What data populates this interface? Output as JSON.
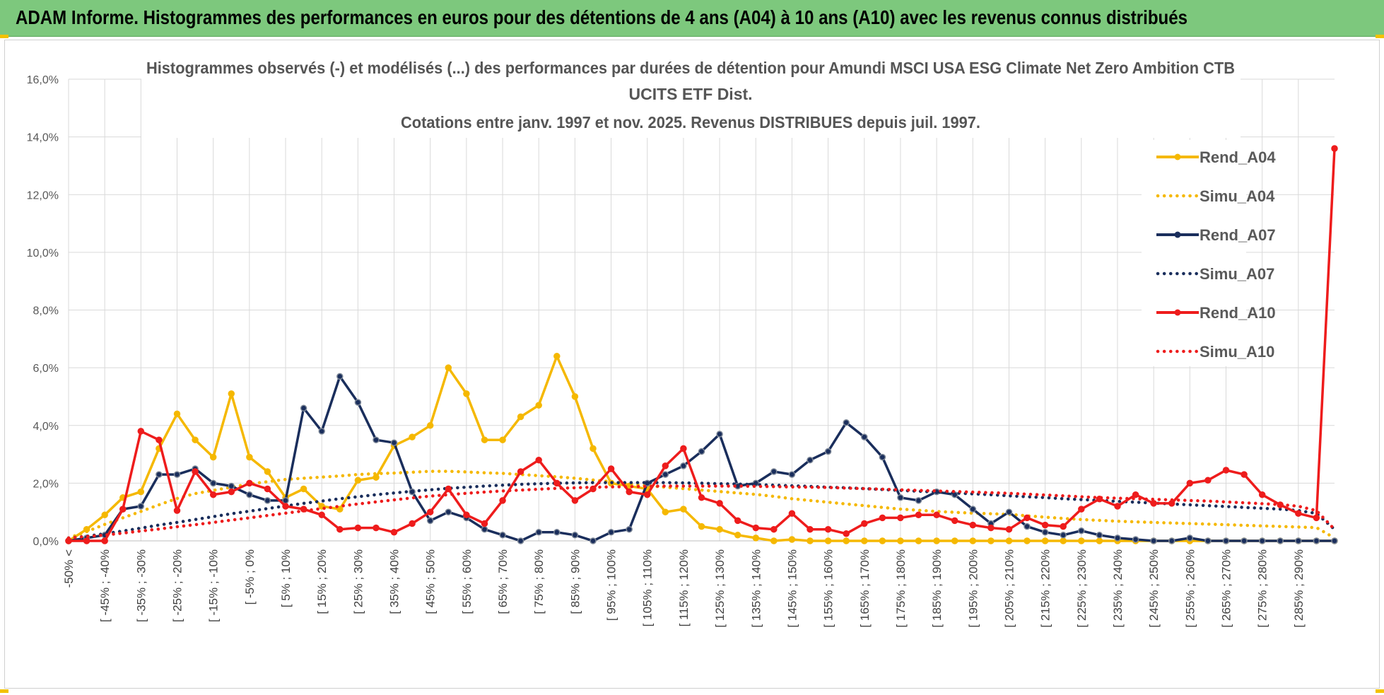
{
  "banner": {
    "title": "ADAM Informe. Histogrammes des performances en euros pour des détentions de 4 ans (A04) à 10 ans (A10) avec les revenus connus distribués"
  },
  "chart_data": {
    "type": "line",
    "title_lines": [
      "Histogrammes observés (-) et modélisés (...) des performances par durées de détention pour Amundi MSCI USA ESG Climate Net Zero Ambition CTB",
      "UCITS ETF Dist.",
      "Cotations entre janv. 1997 et nov. 2025. Revenus DISTRIBUES depuis juil. 1997."
    ],
    "xlabel": "",
    "ylabel": "",
    "ylim": [
      0,
      16
    ],
    "y_ticks": [
      "0,0%",
      "2,0%",
      "4,0%",
      "6,0%",
      "8,0%",
      "10,0%",
      "12,0%",
      "14,0%",
      "16,0%"
    ],
    "x_tick_labels": [
      "-50% <",
      "[ -45% ; -40%",
      "[ -35% ; -30%",
      "[ -25% ; -20%",
      "[ -15% ; -10%",
      "[ -5% ; 0%",
      "[ 5% ; 10%",
      "[ 15% ; 20%",
      "[ 25% ; 30%",
      "[ 35% ; 40%",
      "[ 45% ; 50%",
      "[ 55% ; 60%",
      "[ 65% ; 70%",
      "[ 75% ; 80%",
      "[ 85% ; 90%",
      "[ 95% ; 100%",
      "[ 105% ; 110%",
      "[ 115% ; 120%",
      "[ 125% ; 130%",
      "[ 135% ; 140%",
      "[ 145% ; 150%",
      "[ 155% ; 160%",
      "[ 165% ; 170%",
      "[ 175% ; 180%",
      "[ 185% ; 190%",
      "[ 195% ; 200%",
      "[ 205% ; 210%",
      "[ 215% ; 220%",
      "[ 225% ; 230%",
      "[ 235% ; 240%",
      "[ 245% ; 250%",
      "[ 255% ; 260%",
      "[ 265% ; 270%",
      "[ 275% ; 280%",
      "[ 285% ; 290%"
    ],
    "grid": true,
    "legend_position": "right",
    "series": [
      {
        "name": "Rend_A04",
        "style": "solid",
        "color": "#f5b800",
        "values": [
          0.0,
          0.4,
          0.9,
          1.5,
          1.7,
          3.2,
          4.4,
          3.5,
          2.9,
          5.1,
          2.9,
          2.4,
          1.5,
          1.8,
          1.2,
          1.1,
          2.1,
          2.2,
          3.3,
          3.6,
          4.0,
          6.0,
          5.1,
          3.5,
          3.5,
          4.3,
          4.7,
          6.4,
          5.0,
          3.2,
          2.0,
          1.9,
          1.8,
          1.0,
          1.1,
          0.5,
          0.4,
          0.2,
          0.1,
          0.0,
          0.05,
          0.0,
          0.0,
          0.0,
          0.0,
          0.0,
          0.0,
          0.0,
          0.0,
          0.0,
          0.0,
          0.0,
          0.0,
          0.0,
          0.0,
          0.0,
          0.0,
          0.0,
          0.0,
          0.0,
          0.0,
          0.0,
          0.0,
          0.0,
          0.0,
          0.0,
          0.0,
          0.0,
          0.0,
          0.0,
          0.0
        ]
      },
      {
        "name": "Simu_A04",
        "style": "dotted",
        "color": "#f5b800",
        "values": [
          0.1,
          0.32,
          0.57,
          0.8,
          1.02,
          1.25,
          1.47,
          1.64,
          1.75,
          1.86,
          1.97,
          2.05,
          2.13,
          2.17,
          2.21,
          2.25,
          2.3,
          2.33,
          2.35,
          2.38,
          2.41,
          2.41,
          2.39,
          2.36,
          2.34,
          2.3,
          2.26,
          2.22,
          2.17,
          2.11,
          2.05,
          1.97,
          1.91,
          1.86,
          1.81,
          1.76,
          1.71,
          1.66,
          1.61,
          1.54,
          1.46,
          1.4,
          1.34,
          1.28,
          1.22,
          1.16,
          1.1,
          1.06,
          1.02,
          0.99,
          0.96,
          0.94,
          0.92,
          0.87,
          0.82,
          0.78,
          0.74,
          0.71,
          0.68,
          0.66,
          0.64,
          0.62,
          0.6,
          0.58,
          0.56,
          0.54,
          0.52,
          0.5,
          0.48,
          0.46,
          0.1
        ]
      },
      {
        "name": "Rend_A07",
        "style": "solid",
        "color": "#1a2e5c",
        "values": [
          0.0,
          0.1,
          0.2,
          1.1,
          1.2,
          2.3,
          2.3,
          2.5,
          2.0,
          1.9,
          1.6,
          1.4,
          1.4,
          4.6,
          3.8,
          5.7,
          4.8,
          3.5,
          3.4,
          1.7,
          0.7,
          1.0,
          0.8,
          0.4,
          0.2,
          0.0,
          0.3,
          0.3,
          0.2,
          0.0,
          0.3,
          0.4,
          2.0,
          2.3,
          2.6,
          3.1,
          3.7,
          1.9,
          2.0,
          2.4,
          2.3,
          2.8,
          3.1,
          4.1,
          3.6,
          2.9,
          1.5,
          1.4,
          1.7,
          1.6,
          1.1,
          0.6,
          1.0,
          0.5,
          0.3,
          0.2,
          0.35,
          0.2,
          0.1,
          0.05,
          0.0,
          0.0,
          0.1,
          0.0,
          0.0,
          0.0,
          0.0,
          0.0,
          0.0,
          0.0,
          0.0
        ]
      },
      {
        "name": "Simu_A07",
        "style": "dotted",
        "color": "#1a2e5c",
        "values": [
          0.1,
          0.16,
          0.25,
          0.34,
          0.44,
          0.55,
          0.64,
          0.74,
          0.84,
          0.94,
          1.03,
          1.12,
          1.21,
          1.3,
          1.38,
          1.46,
          1.53,
          1.6,
          1.66,
          1.72,
          1.77,
          1.82,
          1.86,
          1.9,
          1.93,
          1.96,
          1.98,
          2.0,
          2.01,
          2.02,
          2.02,
          2.02,
          2.02,
          2.02,
          2.01,
          2.0,
          1.98,
          1.97,
          1.95,
          1.93,
          1.91,
          1.89,
          1.86,
          1.84,
          1.81,
          1.78,
          1.75,
          1.72,
          1.69,
          1.66,
          1.63,
          1.6,
          1.56,
          1.53,
          1.5,
          1.46,
          1.43,
          1.4,
          1.37,
          1.34,
          1.31,
          1.28,
          1.25,
          1.22,
          1.19,
          1.16,
          1.13,
          1.1,
          1.05,
          0.95,
          0.4
        ]
      },
      {
        "name": "Rend_A10",
        "style": "solid",
        "color": "#ee1c1c",
        "values": [
          0.0,
          0.0,
          0.0,
          1.1,
          3.8,
          3.5,
          1.05,
          2.4,
          1.6,
          1.7,
          2.0,
          1.8,
          1.2,
          1.1,
          0.9,
          0.4,
          0.45,
          0.45,
          0.3,
          0.6,
          1.0,
          1.8,
          0.9,
          0.6,
          1.4,
          2.4,
          2.8,
          2.0,
          1.4,
          1.8,
          2.5,
          1.7,
          1.6,
          2.6,
          3.2,
          1.5,
          1.3,
          0.7,
          0.45,
          0.4,
          0.95,
          0.4,
          0.4,
          0.25,
          0.6,
          0.8,
          0.8,
          0.9,
          0.9,
          0.7,
          0.55,
          0.45,
          0.4,
          0.8,
          0.55,
          0.5,
          1.1,
          1.45,
          1.2,
          1.6,
          1.3,
          1.3,
          2.0,
          2.1,
          2.45,
          2.3,
          1.6,
          1.25,
          0.95,
          0.8,
          13.6
        ]
      },
      {
        "name": "Simu_A10",
        "style": "dotted",
        "color": "#ee1c1c",
        "values": [
          0.1,
          0.15,
          0.2,
          0.27,
          0.34,
          0.41,
          0.49,
          0.56,
          0.64,
          0.72,
          0.8,
          0.88,
          0.96,
          1.04,
          1.12,
          1.2,
          1.28,
          1.35,
          1.42,
          1.49,
          1.55,
          1.6,
          1.65,
          1.69,
          1.73,
          1.76,
          1.79,
          1.82,
          1.84,
          1.86,
          1.87,
          1.88,
          1.89,
          1.9,
          1.9,
          1.9,
          1.9,
          1.9,
          1.89,
          1.88,
          1.87,
          1.86,
          1.85,
          1.83,
          1.81,
          1.79,
          1.77,
          1.75,
          1.73,
          1.71,
          1.69,
          1.67,
          1.65,
          1.62,
          1.59,
          1.56,
          1.53,
          1.5,
          1.48,
          1.46,
          1.44,
          1.42,
          1.4,
          1.38,
          1.35,
          1.32,
          1.29,
          1.26,
          1.2,
          1.05,
          0.4
        ]
      }
    ]
  }
}
